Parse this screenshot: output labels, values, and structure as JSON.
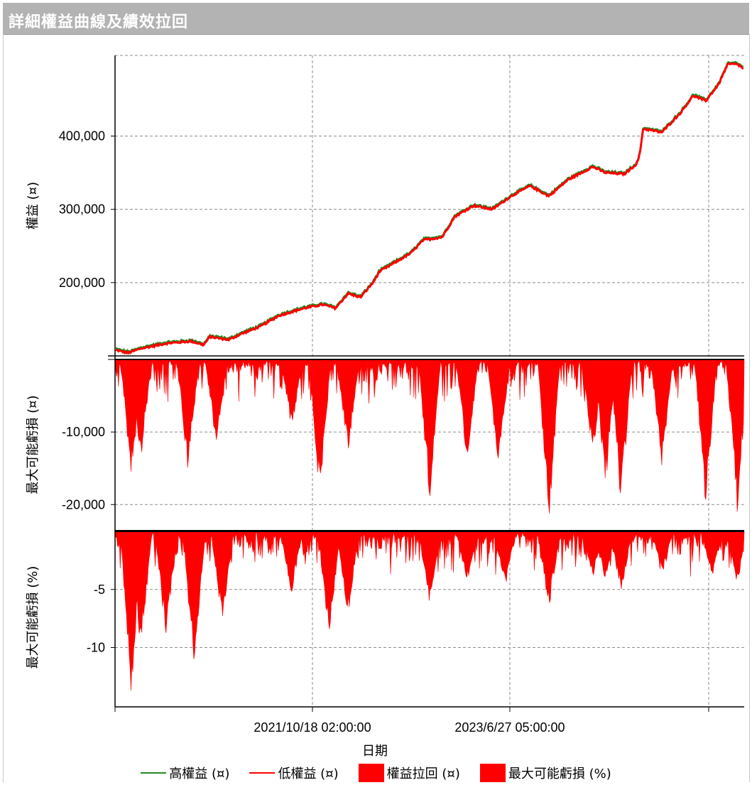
{
  "window": {
    "title": "詳細權益曲線及績效拉回"
  },
  "chart_data": {
    "type": "line",
    "xlabel": "日期",
    "x_ticks": [
      "2021/10/18 02:00:00",
      "2023/6/27 05:00:00"
    ],
    "legend": [
      {
        "name": "高權益 (¤)",
        "color": "#228B22",
        "kind": "line"
      },
      {
        "name": "低權益 (¤)",
        "color": "#ff0000",
        "kind": "line"
      },
      {
        "name": "權益拉回 (¤)",
        "color": "#ff0000",
        "kind": "box"
      },
      {
        "name": "最大可能虧損 (%)",
        "color": "#ff0000",
        "kind": "box"
      }
    ],
    "panels": [
      {
        "id": "equity",
        "ylabel": "權益 (¤)",
        "ylim": [
          100000,
          510000
        ],
        "yticks": [
          200000,
          300000,
          400000
        ],
        "ytick_labels": [
          "200,000",
          "300,000",
          "400,000"
        ],
        "series_color": "#ff0000",
        "anchors": [
          [
            0,
            108000
          ],
          [
            0.02,
            104000
          ],
          [
            0.04,
            110000
          ],
          [
            0.08,
            117000
          ],
          [
            0.12,
            120000
          ],
          [
            0.14,
            115000
          ],
          [
            0.15,
            126000
          ],
          [
            0.18,
            122000
          ],
          [
            0.2,
            130000
          ],
          [
            0.23,
            140000
          ],
          [
            0.26,
            155000
          ],
          [
            0.3,
            165000
          ],
          [
            0.33,
            170000
          ],
          [
            0.35,
            165000
          ],
          [
            0.37,
            185000
          ],
          [
            0.39,
            180000
          ],
          [
            0.41,
            200000
          ],
          [
            0.42,
            215000
          ],
          [
            0.45,
            230000
          ],
          [
            0.47,
            240000
          ],
          [
            0.49,
            258000
          ],
          [
            0.52,
            262000
          ],
          [
            0.54,
            290000
          ],
          [
            0.57,
            305000
          ],
          [
            0.6,
            300000
          ],
          [
            0.63,
            318000
          ],
          [
            0.66,
            332000
          ],
          [
            0.69,
            318000
          ],
          [
            0.72,
            340000
          ],
          [
            0.76,
            358000
          ],
          [
            0.78,
            350000
          ],
          [
            0.81,
            348000
          ],
          [
            0.83,
            362000
          ],
          [
            0.835,
            376000
          ],
          [
            0.84,
            410000
          ],
          [
            0.87,
            405000
          ],
          [
            0.9,
            432000
          ],
          [
            0.92,
            455000
          ],
          [
            0.94,
            448000
          ],
          [
            0.96,
            470000
          ],
          [
            0.975,
            498000
          ],
          [
            0.99,
            498000
          ],
          [
            1.0,
            492000
          ]
        ]
      },
      {
        "id": "drawdown",
        "ylabel": "最大可能虧損 (¤)",
        "ylim": [
          -23500,
          0
        ],
        "yticks": [
          -10000,
          -20000
        ],
        "ytick_labels": [
          "-10,000",
          "-20,000"
        ],
        "series_color": "#ff0000",
        "spikes": [
          [
            0.025,
            -16500
          ],
          [
            0.04,
            -14000
          ],
          [
            0.115,
            -15500
          ],
          [
            0.16,
            -12000
          ],
          [
            0.28,
            -10000
          ],
          [
            0.325,
            -19000
          ],
          [
            0.37,
            -13500
          ],
          [
            0.5,
            -20000
          ],
          [
            0.56,
            -15000
          ],
          [
            0.61,
            -16000
          ],
          [
            0.69,
            -23500
          ],
          [
            0.76,
            -14000
          ],
          [
            0.78,
            -18000
          ],
          [
            0.805,
            -20500
          ],
          [
            0.87,
            -15000
          ],
          [
            0.94,
            -21000
          ],
          [
            0.99,
            -21500
          ]
        ]
      },
      {
        "id": "drawdown_pct",
        "ylabel": "最大可能虧損 (%)",
        "ylim": [
          -14.8,
          0
        ],
        "yticks": [
          -5,
          -10
        ],
        "ytick_labels": [
          "-5",
          "-10"
        ],
        "series_color": "#ff0000",
        "spikes": [
          [
            0.025,
            -14.5
          ],
          [
            0.04,
            -10.5
          ],
          [
            0.08,
            -9.5
          ],
          [
            0.125,
            -12.5
          ],
          [
            0.17,
            -8.5
          ],
          [
            0.28,
            -5.5
          ],
          [
            0.34,
            -9.8
          ],
          [
            0.37,
            -7.5
          ],
          [
            0.5,
            -6.5
          ],
          [
            0.56,
            -4.5
          ],
          [
            0.62,
            -5.0
          ],
          [
            0.69,
            -7.0
          ],
          [
            0.76,
            -3.8
          ],
          [
            0.78,
            -4.5
          ],
          [
            0.805,
            -5.5
          ],
          [
            0.87,
            -3.5
          ],
          [
            0.95,
            -4.0
          ],
          [
            0.99,
            -4.5
          ]
        ]
      }
    ]
  }
}
